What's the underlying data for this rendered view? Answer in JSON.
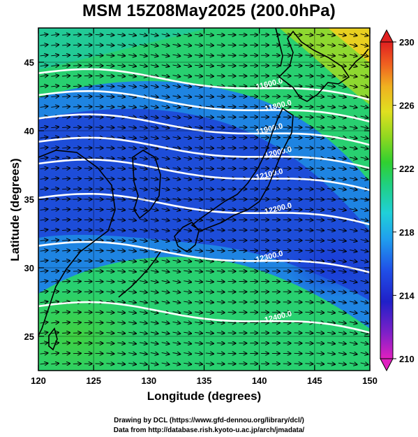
{
  "title": "MSM 15Z08May2025 (200.0hPa)",
  "xlabel": "Longitude (degrees)",
  "ylabel": "Latitude  (degrees)",
  "credits": [
    "Drawing by DCL (https://www.gfd-dennou.org/library/dcl/)",
    "Data from http://database.rish.kyoto-u.ac.jp/arch/jmadata/"
  ],
  "map": {
    "lon_range": [
      120,
      150
    ],
    "lat_range": [
      22.5,
      47.5
    ],
    "lon_ticks": [
      120,
      125,
      130,
      135,
      140,
      145,
      150
    ],
    "lat_ticks": [
      25,
      30,
      35,
      40,
      45
    ]
  },
  "colorbar": {
    "min": 210,
    "max": 230,
    "labels": [
      210,
      214,
      218,
      222,
      226,
      230
    ]
  },
  "contours": [
    {
      "label": "11600.0",
      "lat": 44.2
    },
    {
      "label": "11800.0",
      "lat": 42.6
    },
    {
      "label": "11900.0",
      "lat": 40.9
    },
    {
      "label": "12000.0",
      "lat": 39.2
    },
    {
      "label": "12100.0",
      "lat": 37.6
    },
    {
      "label": "12200.0",
      "lat": 35.1
    },
    {
      "label": "12300.0",
      "lat": 31.6
    },
    {
      "label": "12400.0",
      "lat": 27.2
    }
  ],
  "colors": {
    "coast": "#000000",
    "contour": "#ffffff",
    "vector": "#000000"
  }
}
